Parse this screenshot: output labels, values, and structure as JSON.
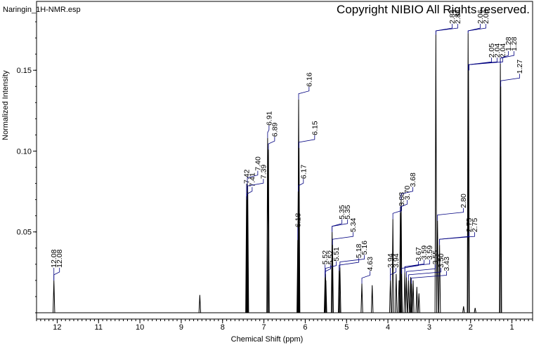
{
  "header": {
    "filename": "Naringin_1H-NMR.esp",
    "copyright": "Copyright NIBIO All Rights reserved."
  },
  "chart_data": {
    "type": "line",
    "title": "",
    "xlabel": "Chemical Shift (ppm)",
    "ylabel": "Normalized Intensity",
    "xlim": [
      12.5,
      0.5
    ],
    "ylim": [
      0,
      0.19
    ],
    "x_ticks": [
      "12",
      "11",
      "10",
      "9",
      "8",
      "7",
      "6",
      "5",
      "4",
      "3",
      "2",
      "1"
    ],
    "y_ticks": [
      "0.15",
      "0.10",
      "0.05"
    ],
    "grid": false,
    "line_color": "#000000",
    "label_color": "#000080",
    "peaks": [
      {
        "x": 12.08,
        "y": 0.02
      },
      {
        "x": 8.55,
        "y": 0.011
      },
      {
        "x": 7.42,
        "y": 0.072
      },
      {
        "x": 7.41,
        "y": 0.07
      },
      {
        "x": 7.4,
        "y": 0.08
      },
      {
        "x": 7.39,
        "y": 0.075
      },
      {
        "x": 6.91,
        "y": 0.108
      },
      {
        "x": 6.89,
        "y": 0.101
      },
      {
        "x": 6.18,
        "y": 0.045
      },
      {
        "x": 6.17,
        "y": 0.075
      },
      {
        "x": 6.16,
        "y": 0.132
      },
      {
        "x": 6.15,
        "y": 0.102
      },
      {
        "x": 5.52,
        "y": 0.022
      },
      {
        "x": 5.51,
        "y": 0.024
      },
      {
        "x": 5.5,
        "y": 0.02
      },
      {
        "x": 5.35,
        "y": 0.05
      },
      {
        "x": 5.34,
        "y": 0.042
      },
      {
        "x": 5.18,
        "y": 0.026
      },
      {
        "x": 5.16,
        "y": 0.028
      },
      {
        "x": 4.63,
        "y": 0.018
      },
      {
        "x": 4.38,
        "y": 0.017
      },
      {
        "x": 3.94,
        "y": 0.02
      },
      {
        "x": 3.88,
        "y": 0.058
      },
      {
        "x": 3.8,
        "y": 0.024
      },
      {
        "x": 3.73,
        "y": 0.02
      },
      {
        "x": 3.7,
        "y": 0.062
      },
      {
        "x": 3.68,
        "y": 0.07
      },
      {
        "x": 3.67,
        "y": 0.024
      },
      {
        "x": 3.59,
        "y": 0.025
      },
      {
        "x": 3.55,
        "y": 0.022
      },
      {
        "x": 3.5,
        "y": 0.02
      },
      {
        "x": 3.45,
        "y": 0.022
      },
      {
        "x": 3.43,
        "y": 0.018
      },
      {
        "x": 3.39,
        "y": 0.02
      },
      {
        "x": 3.3,
        "y": 0.016
      },
      {
        "x": 3.25,
        "y": 0.012
      },
      {
        "x": 2.84,
        "y": 0.172
      },
      {
        "x": 2.8,
        "y": 0.057
      },
      {
        "x": 2.75,
        "y": 0.042
      },
      {
        "x": 2.17,
        "y": 0.004
      },
      {
        "x": 2.06,
        "y": 0.173
      },
      {
        "x": 2.05,
        "y": 0.15
      },
      {
        "x": 1.89,
        "y": 0.003
      },
      {
        "x": 1.28,
        "y": 0.154
      },
      {
        "x": 1.27,
        "y": 0.14
      }
    ],
    "labels": [
      {
        "text": "12.08",
        "x": 12.08,
        "y": 0.02
      },
      {
        "text": "12.08",
        "x": 12.08,
        "y": 0.02
      },
      {
        "text": "7.42",
        "x": 7.42,
        "y": 0.072
      },
      {
        "text": "7.41",
        "x": 7.41,
        "y": 0.07
      },
      {
        "text": "7.40",
        "x": 7.4,
        "y": 0.08
      },
      {
        "text": "7.39",
        "x": 7.39,
        "y": 0.075
      },
      {
        "text": "6.91",
        "x": 6.91,
        "y": 0.108
      },
      {
        "text": "6.89",
        "x": 6.89,
        "y": 0.101
      },
      {
        "text": "6.18",
        "x": 6.18,
        "y": 0.045
      },
      {
        "text": "6.17",
        "x": 6.17,
        "y": 0.075
      },
      {
        "text": "6.16",
        "x": 6.16,
        "y": 0.132
      },
      {
        "text": "6.15",
        "x": 6.15,
        "y": 0.102
      },
      {
        "text": "5.52",
        "x": 5.52,
        "y": 0.022
      },
      {
        "text": "5.52",
        "x": 5.52,
        "y": 0.022
      },
      {
        "text": "5.51",
        "x": 5.51,
        "y": 0.024
      },
      {
        "text": "5.35",
        "x": 5.35,
        "y": 0.05
      },
      {
        "text": "5.35",
        "x": 5.35,
        "y": 0.05
      },
      {
        "text": "5.34",
        "x": 5.34,
        "y": 0.042
      },
      {
        "text": "5.18",
        "x": 5.18,
        "y": 0.026
      },
      {
        "text": "5.16",
        "x": 5.16,
        "y": 0.028
      },
      {
        "text": "4.63",
        "x": 4.63,
        "y": 0.018
      },
      {
        "text": "3.94",
        "x": 3.94,
        "y": 0.02
      },
      {
        "text": "3.94",
        "x": 3.94,
        "y": 0.02
      },
      {
        "text": "3.88",
        "x": 3.88,
        "y": 0.058
      },
      {
        "text": "3.70",
        "x": 3.7,
        "y": 0.062
      },
      {
        "text": "3.68",
        "x": 3.68,
        "y": 0.07
      },
      {
        "text": "3.67",
        "x": 3.67,
        "y": 0.024
      },
      {
        "text": "3.59",
        "x": 3.59,
        "y": 0.025
      },
      {
        "text": "3.59",
        "x": 3.59,
        "y": 0.025
      },
      {
        "text": "3.55",
        "x": 3.55,
        "y": 0.022
      },
      {
        "text": "3.50",
        "x": 3.5,
        "y": 0.02
      },
      {
        "text": "3.43",
        "x": 3.43,
        "y": 0.018
      },
      {
        "text": "2.84",
        "x": 2.84,
        "y": 0.172
      },
      {
        "text": "2.84",
        "x": 2.84,
        "y": 0.172
      },
      {
        "text": "2.80",
        "x": 2.8,
        "y": 0.057
      },
      {
        "text": "2.75",
        "x": 2.75,
        "y": 0.042
      },
      {
        "text": "2.75",
        "x": 2.75,
        "y": 0.042
      },
      {
        "text": "2.06",
        "x": 2.06,
        "y": 0.173
      },
      {
        "text": "2.06",
        "x": 2.06,
        "y": 0.173
      },
      {
        "text": "2.05",
        "x": 2.05,
        "y": 0.15
      },
      {
        "text": "2.04",
        "x": 2.04,
        "y": 0.15
      },
      {
        "text": "2.04",
        "x": 2.04,
        "y": 0.15
      },
      {
        "text": "1.28",
        "x": 1.28,
        "y": 0.154
      },
      {
        "text": "1.28",
        "x": 1.28,
        "y": 0.154
      },
      {
        "text": "1.27",
        "x": 1.27,
        "y": 0.14
      }
    ]
  }
}
